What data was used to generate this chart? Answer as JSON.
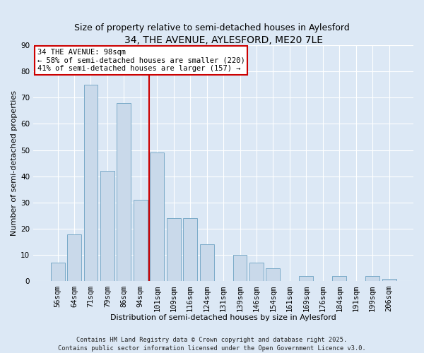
{
  "title": "34, THE AVENUE, AYLESFORD, ME20 7LE",
  "subtitle": "Size of property relative to semi-detached houses in Aylesford",
  "xlabel": "Distribution of semi-detached houses by size in Aylesford",
  "ylabel": "Number of semi-detached properties",
  "categories": [
    "56sqm",
    "64sqm",
    "71sqm",
    "79sqm",
    "86sqm",
    "94sqm",
    "101sqm",
    "109sqm",
    "116sqm",
    "124sqm",
    "131sqm",
    "139sqm",
    "146sqm",
    "154sqm",
    "161sqm",
    "169sqm",
    "176sqm",
    "184sqm",
    "191sqm",
    "199sqm",
    "206sqm"
  ],
  "values": [
    7,
    18,
    75,
    42,
    68,
    31,
    49,
    24,
    24,
    14,
    0,
    10,
    7,
    5,
    0,
    2,
    0,
    2,
    0,
    2,
    1
  ],
  "bar_color": "#c9d9ea",
  "bar_edge_color": "#7aaac8",
  "vline_color": "#cc0000",
  "vline_x": 5.5,
  "annotation_title": "34 THE AVENUE: 98sqm",
  "annotation_line1": "← 58% of semi-detached houses are smaller (220)",
  "annotation_line2": "41% of semi-detached houses are larger (157) →",
  "annotation_box_facecolor": "#ffffff",
  "annotation_box_edgecolor": "#cc0000",
  "ylim": [
    0,
    90
  ],
  "yticks": [
    0,
    10,
    20,
    30,
    40,
    50,
    60,
    70,
    80,
    90
  ],
  "background_color": "#dce8f5",
  "grid_color": "#ffffff",
  "title_fontsize": 10,
  "subtitle_fontsize": 9,
  "axis_label_fontsize": 8,
  "tick_fontsize": 7.5,
  "annotation_fontsize": 7.5,
  "footer_fontsize": 6.2,
  "footer1": "Contains HM Land Registry data © Crown copyright and database right 2025.",
  "footer2": "Contains public sector information licensed under the Open Government Licence v3.0."
}
